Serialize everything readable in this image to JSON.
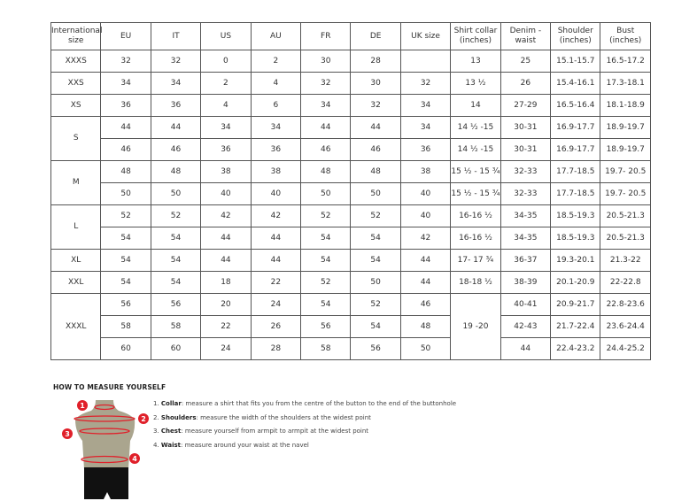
{
  "table": {
    "headers": [
      "International size",
      "EU",
      "IT",
      "US",
      "AU",
      "FR",
      "DE",
      "UK size",
      "Shirt collar (inches)",
      "Denim - waist",
      "Shoulder (inches)",
      "Bust (inches)"
    ],
    "rows": [
      [
        {
          "t": "XXXS"
        },
        {
          "t": "32"
        },
        {
          "t": "32"
        },
        {
          "t": "0"
        },
        {
          "t": "2"
        },
        {
          "t": "30"
        },
        {
          "t": "28"
        },
        {
          "t": ""
        },
        {
          "t": "13"
        },
        {
          "t": "25"
        },
        {
          "t": "15.1-15.7"
        },
        {
          "t": "16.5-17.2"
        }
      ],
      [
        {
          "t": "XXS"
        },
        {
          "t": "34"
        },
        {
          "t": "34"
        },
        {
          "t": "2"
        },
        {
          "t": "4"
        },
        {
          "t": "32"
        },
        {
          "t": "30"
        },
        {
          "t": "32"
        },
        {
          "t": "13 ½"
        },
        {
          "t": "26"
        },
        {
          "t": "15.4-16.1"
        },
        {
          "t": "17.3-18.1"
        }
      ],
      [
        {
          "t": "XS"
        },
        {
          "t": "36"
        },
        {
          "t": "36"
        },
        {
          "t": "4"
        },
        {
          "t": "6"
        },
        {
          "t": "34"
        },
        {
          "t": "32"
        },
        {
          "t": "34"
        },
        {
          "t": "14"
        },
        {
          "t": "27-29"
        },
        {
          "t": "16.5-16.4"
        },
        {
          "t": "18.1-18.9"
        }
      ],
      [
        {
          "t": "S",
          "rs": 2
        },
        {
          "t": "44"
        },
        {
          "t": "44"
        },
        {
          "t": "34"
        },
        {
          "t": "34"
        },
        {
          "t": "44"
        },
        {
          "t": "44"
        },
        {
          "t": "34"
        },
        {
          "t": "14 ½ -15"
        },
        {
          "t": "30-31"
        },
        {
          "t": "16.9-17.7"
        },
        {
          "t": "18.9-19.7"
        }
      ],
      [
        {
          "t": "46"
        },
        {
          "t": "46"
        },
        {
          "t": "36"
        },
        {
          "t": "36"
        },
        {
          "t": "46"
        },
        {
          "t": "46"
        },
        {
          "t": "36"
        },
        {
          "t": "14 ½ -15"
        },
        {
          "t": "30-31"
        },
        {
          "t": "16.9-17.7"
        },
        {
          "t": "18.9-19.7"
        }
      ],
      [
        {
          "t": "M",
          "rs": 2
        },
        {
          "t": "48"
        },
        {
          "t": "48"
        },
        {
          "t": "38"
        },
        {
          "t": "38"
        },
        {
          "t": "48"
        },
        {
          "t": "48"
        },
        {
          "t": "38"
        },
        {
          "t": "15 ½ - 15 ¾"
        },
        {
          "t": "32-33"
        },
        {
          "t": "17.7-18.5"
        },
        {
          "t": "19.7- 20.5"
        }
      ],
      [
        {
          "t": "50"
        },
        {
          "t": "50"
        },
        {
          "t": "40"
        },
        {
          "t": "40"
        },
        {
          "t": "50"
        },
        {
          "t": "50"
        },
        {
          "t": "40"
        },
        {
          "t": "15 ½ - 15 ¾"
        },
        {
          "t": "32-33"
        },
        {
          "t": "17.7-18.5"
        },
        {
          "t": "19.7- 20.5"
        }
      ],
      [
        {
          "t": "L",
          "rs": 2
        },
        {
          "t": "52"
        },
        {
          "t": "52"
        },
        {
          "t": "42"
        },
        {
          "t": "42"
        },
        {
          "t": "52"
        },
        {
          "t": "52"
        },
        {
          "t": "40"
        },
        {
          "t": "16-16 ½"
        },
        {
          "t": "34-35"
        },
        {
          "t": "18.5-19.3"
        },
        {
          "t": "20.5-21.3"
        }
      ],
      [
        {
          "t": "54"
        },
        {
          "t": "54"
        },
        {
          "t": "44"
        },
        {
          "t": "44"
        },
        {
          "t": "54"
        },
        {
          "t": "54"
        },
        {
          "t": "42"
        },
        {
          "t": "16-16 ½"
        },
        {
          "t": "34-35"
        },
        {
          "t": "18.5-19.3"
        },
        {
          "t": "20.5-21.3"
        }
      ],
      [
        {
          "t": "XL"
        },
        {
          "t": "54"
        },
        {
          "t": "54"
        },
        {
          "t": "44"
        },
        {
          "t": "44"
        },
        {
          "t": "54"
        },
        {
          "t": "54"
        },
        {
          "t": "44"
        },
        {
          "t": "17- 17 ¾"
        },
        {
          "t": "36-37"
        },
        {
          "t": "19.3-20.1"
        },
        {
          "t": "21.3-22"
        }
      ],
      [
        {
          "t": "XXL"
        },
        {
          "t": "54"
        },
        {
          "t": "54"
        },
        {
          "t": "18"
        },
        {
          "t": "22"
        },
        {
          "t": "52"
        },
        {
          "t": "50"
        },
        {
          "t": "44"
        },
        {
          "t": "18-18 ½"
        },
        {
          "t": "38-39"
        },
        {
          "t": "20.1-20.9"
        },
        {
          "t": "22-22.8"
        }
      ],
      [
        {
          "t": "XXXL",
          "rs": 3
        },
        {
          "t": "56"
        },
        {
          "t": "56"
        },
        {
          "t": "20"
        },
        {
          "t": "24"
        },
        {
          "t": "54"
        },
        {
          "t": "52"
        },
        {
          "t": "46"
        },
        {
          "t": "19 -20",
          "rs": 3
        },
        {
          "t": "40-41"
        },
        {
          "t": "20.9-21.7"
        },
        {
          "t": "22.8-23.6"
        }
      ],
      [
        {
          "t": "58"
        },
        {
          "t": "58"
        },
        {
          "t": "22"
        },
        {
          "t": "26"
        },
        {
          "t": "56"
        },
        {
          "t": "54"
        },
        {
          "t": "48"
        },
        {
          "t": "42-43"
        },
        {
          "t": "21.7-22.4"
        },
        {
          "t": "23.6-24.4"
        }
      ],
      [
        {
          "t": "60"
        },
        {
          "t": "60"
        },
        {
          "t": "24"
        },
        {
          "t": "28"
        },
        {
          "t": "58"
        },
        {
          "t": "56"
        },
        {
          "t": "50"
        },
        {
          "t": "44"
        },
        {
          "t": "22.4-23.2"
        },
        {
          "t": "24.4-25.2"
        }
      ]
    ]
  },
  "measure": {
    "title": "HOW TO MEASURE YOURSELF",
    "markers": [
      "1",
      "2",
      "3",
      "4"
    ],
    "steps": [
      {
        "num": "1.",
        "term": "Collar",
        "text": ": measure a shirt that fits you from the centre of the button to the end of the buttonhole"
      },
      {
        "num": "2.",
        "term": "Shoulders",
        "text": ": measure the width of the shoulders at the widest point"
      },
      {
        "num": "3.",
        "term": "Chest",
        "text": ": measure yourself from armpit to armpit at the widest point"
      },
      {
        "num": "4.",
        "term": "Waist",
        "text": ": measure around your waist at the navel"
      }
    ],
    "colors": {
      "marker": "#e0202a",
      "torso": "#aaa58e",
      "shorts": "#111111"
    }
  }
}
